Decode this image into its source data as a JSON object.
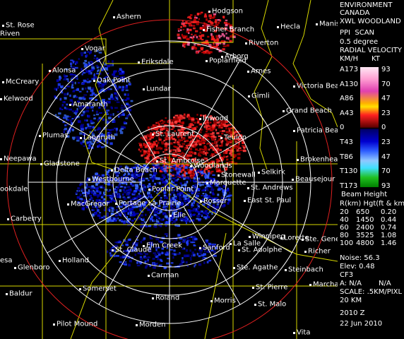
{
  "header": {
    "agency": [
      "ENVIRONMENT",
      "CANADA"
    ],
    "radar": "XWL WOODLAND",
    "product": "PPI  SCAN",
    "elevation_angle": "0.5 degree",
    "field": "RADIAL VELOCITY",
    "units": [
      "KM/H",
      "KT"
    ]
  },
  "velocity_scale": [
    {
      "kmh": "A173",
      "kt": "93"
    },
    {
      "kmh": "A130",
      "kt": "70"
    },
    {
      "kmh": "A86",
      "kt": "47"
    },
    {
      "kmh": "A43",
      "kt": "23"
    },
    {
      "kmh": "0",
      "kt": "0"
    },
    {
      "kmh": "T43",
      "kt": "23"
    },
    {
      "kmh": "T86",
      "kt": "47"
    },
    {
      "kmh": "T130",
      "kt": "70"
    },
    {
      "kmh": "T173",
      "kt": "93"
    }
  ],
  "beam_height": {
    "title": "Beam Height",
    "header": "R(km) Hgt(ft & km)",
    "rows": [
      [
        "20",
        "650",
        "0.20"
      ],
      [
        "40",
        "1450",
        "0.44"
      ],
      [
        "60",
        "2400",
        "0.74"
      ],
      [
        "80",
        "3525",
        "1.08"
      ],
      [
        "100",
        "4800",
        "1.46"
      ]
    ]
  },
  "info": [
    "Noise: 56.3",
    "Elev: 0.48",
    "CF3",
    "A: N/A",
    "N/A",
    "SCALE: .5KM/PIXL",
    "20 KM"
  ],
  "timestamp": [
    "2010 Z",
    "22 Jun 2010"
  ],
  "places": [
    "Ashern",
    "Hodgson",
    "St. Rose",
    "Riven",
    "Fisher Branch",
    "Hecla",
    "Manis",
    "Riverton",
    "Vogar",
    "Arborg",
    "Eriksdale",
    "Poplarfield",
    "Alonsa",
    "Arnes",
    "McCreary",
    "Oak Point",
    "Victoria Beach",
    "Lundar",
    "Gimli",
    "Kelwood",
    "Amaranth",
    "Grand Beach",
    "Inwood",
    "Patricia Beach",
    "St. Laurent",
    "Teulon",
    "Plumas",
    "Langruth",
    "Brokenhead",
    "Neepawa",
    "Gladstone",
    "St. Ambroise",
    "Woodlands",
    "Selkirk",
    "Beausejour",
    "Delta Beach",
    "Stonewall",
    "Westbourne",
    "Marquette",
    "Poplar Point",
    "St. Andrews",
    "ookdale",
    "MacGregor",
    "Portage La Prairie",
    "Rosser",
    "East St. Paul",
    "Carberry",
    "Elie",
    "Winnipeg",
    "Lorette",
    "Ste. Gene",
    "Elm Creek",
    "St. Claude",
    "Sanford",
    "La Salle",
    "St. Adolphe",
    "Richer",
    "esa",
    "Holland",
    "Glenboro",
    "Ste. Agathe",
    "Steinbach",
    "Carman",
    "Somerset",
    "St. Pierre",
    "Marcha",
    "Baldur",
    "Roland",
    "Morris",
    "St. Malo",
    "Pilot Mound",
    "Morden",
    "Vita"
  ]
}
